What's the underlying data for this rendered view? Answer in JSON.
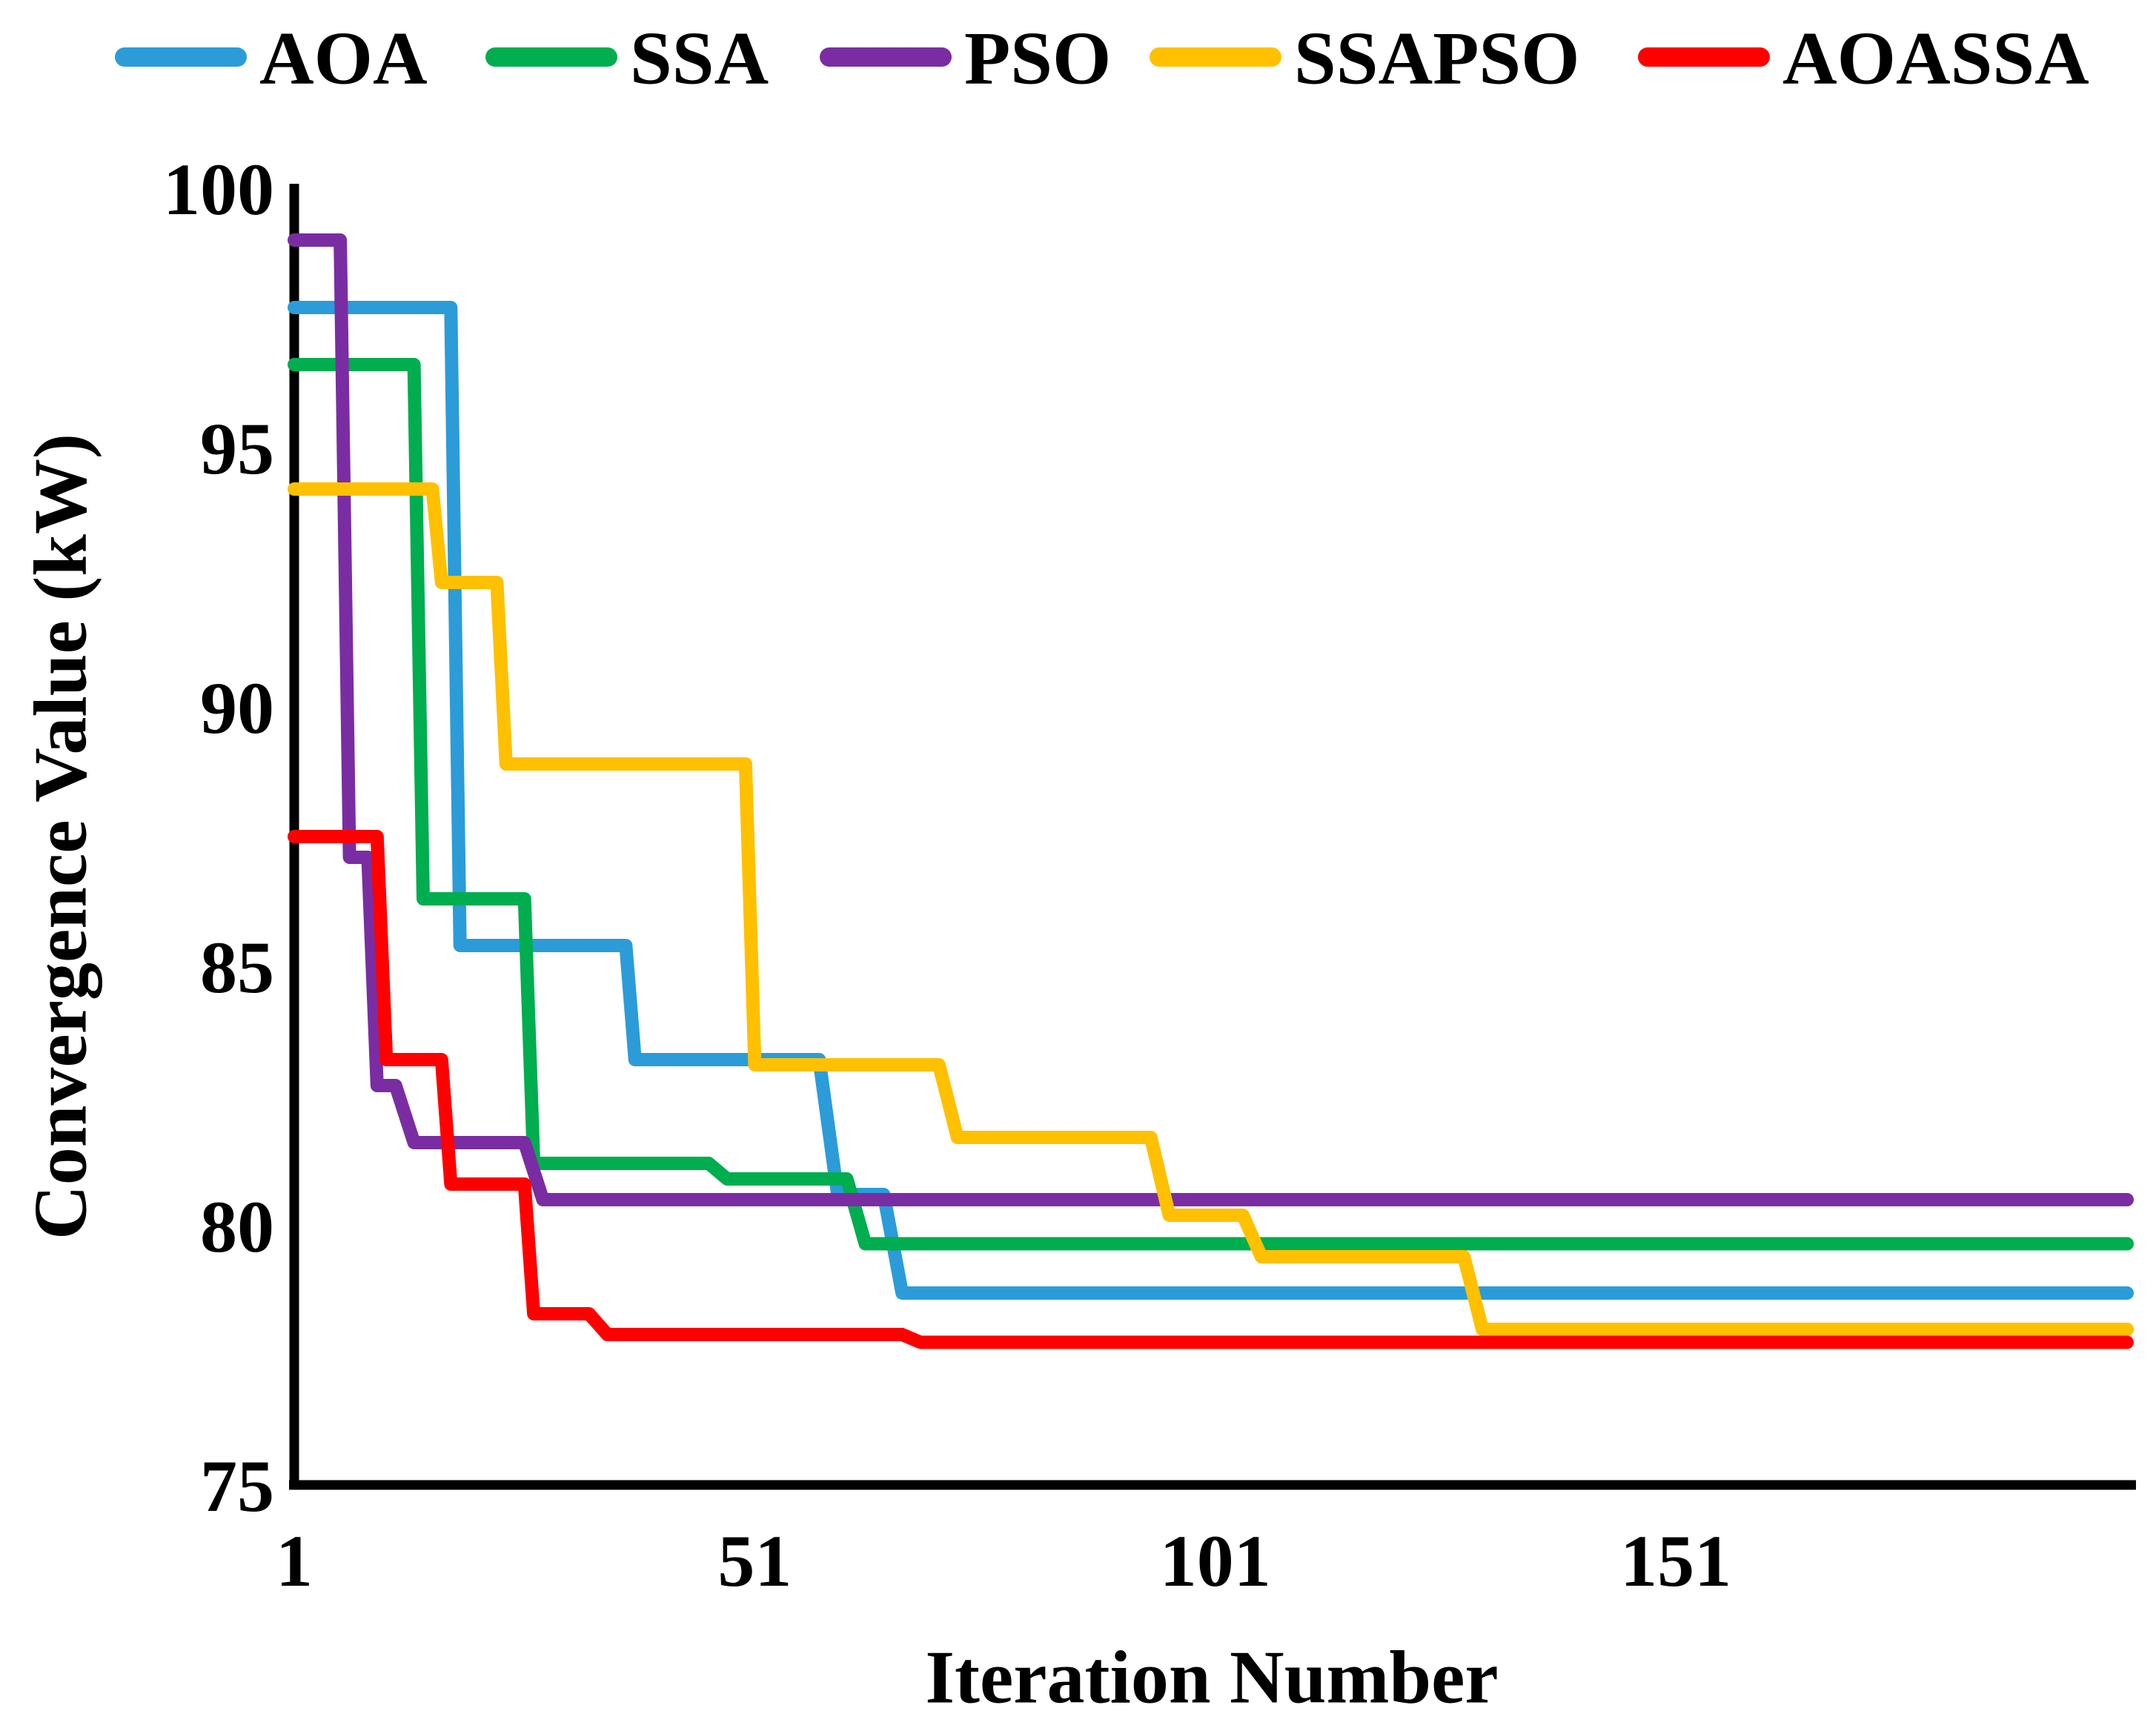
{
  "figure": {
    "background": "#ffffff",
    "axis_color": "#000000"
  },
  "chart_data": {
    "type": "line",
    "title": "",
    "xlabel": "Iteration Number",
    "ylabel": "Convergence Value (kW)",
    "xlim": [
      1,
      200
    ],
    "ylim": [
      75,
      100
    ],
    "xticks": [
      1,
      51,
      101,
      151
    ],
    "yticks": [
      100,
      95,
      90,
      85,
      80,
      75
    ],
    "grid": false,
    "legend_position": "top",
    "series": [
      {
        "name": "AOA",
        "color": "#2B9CD8",
        "points": [
          [
            1,
            97.7
          ],
          [
            18,
            97.7
          ],
          [
            19,
            85.4
          ],
          [
            37,
            85.4
          ],
          [
            38,
            83.2
          ],
          [
            58,
            83.2
          ],
          [
            60,
            80.6
          ],
          [
            65,
            80.6
          ],
          [
            67,
            78.7
          ],
          [
            200,
            78.7
          ]
        ]
      },
      {
        "name": "SSA",
        "color": "#00AD4F",
        "points": [
          [
            1,
            96.6
          ],
          [
            14,
            96.6
          ],
          [
            15,
            86.3
          ],
          [
            26,
            86.3
          ],
          [
            27,
            81.2
          ],
          [
            46,
            81.2
          ],
          [
            48,
            80.9
          ],
          [
            61,
            80.9
          ],
          [
            63,
            79.65
          ],
          [
            200,
            79.65
          ]
        ]
      },
      {
        "name": "PSO",
        "color": "#7A2DA2",
        "points": [
          [
            1,
            99
          ],
          [
            6,
            99
          ],
          [
            7,
            87.1
          ],
          [
            9,
            87.1
          ],
          [
            10,
            82.7
          ],
          [
            12,
            82.7
          ],
          [
            14,
            81.6
          ],
          [
            26,
            81.6
          ],
          [
            28,
            80.5
          ],
          [
            200,
            80.5
          ]
        ]
      },
      {
        "name": "SSAPSO",
        "color": "#FFC000",
        "points": [
          [
            1,
            94.2
          ],
          [
            16,
            94.2
          ],
          [
            17,
            92.4
          ],
          [
            23,
            92.4
          ],
          [
            24,
            88.9
          ],
          [
            50,
            88.9
          ],
          [
            51,
            83.1
          ],
          [
            71,
            83.1
          ],
          [
            73,
            81.7
          ],
          [
            94,
            81.7
          ],
          [
            96,
            80.2
          ],
          [
            104,
            80.2
          ],
          [
            106,
            79.4
          ],
          [
            128,
            79.4
          ],
          [
            130,
            78
          ],
          [
            200,
            78
          ]
        ]
      },
      {
        "name": "AOASSA",
        "color": "#FF0000",
        "points": [
          [
            1,
            87.5
          ],
          [
            10,
            87.5
          ],
          [
            11,
            83.2
          ],
          [
            17,
            83.2
          ],
          [
            18,
            80.8
          ],
          [
            26,
            80.8
          ],
          [
            27,
            78.3
          ],
          [
            33,
            78.3
          ],
          [
            35,
            77.9
          ],
          [
            67,
            77.9
          ],
          [
            69,
            77.75
          ],
          [
            200,
            77.75
          ]
        ]
      }
    ]
  }
}
